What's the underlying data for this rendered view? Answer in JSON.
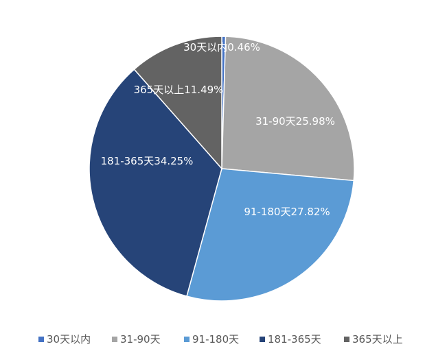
{
  "chart_data": {
    "type": "pie",
    "categories": [
      "30天以内",
      "31-90天",
      "91-180天",
      "181-365天",
      "365天以上"
    ],
    "values": [
      0.46,
      25.98,
      27.82,
      34.25,
      11.49
    ],
    "labels": [
      "30天以内0.46%",
      "31-90天25.98%",
      "91-180天27.82%",
      "181-365天34.25%",
      "365天以上11.49%"
    ],
    "colors": [
      "#4472c4",
      "#a5a5a5",
      "#5b9bd5",
      "#264478",
      "#636363"
    ],
    "legend_position": "bottom",
    "start_angle_deg": 0,
    "direction": "clockwise"
  }
}
